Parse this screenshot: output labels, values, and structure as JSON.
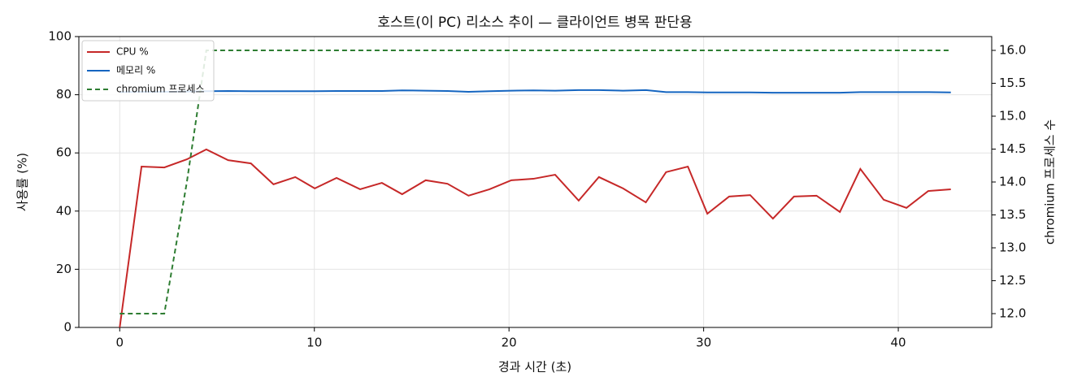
{
  "chart_data": {
    "type": "line",
    "title": "호스트(이 PC) 리소스 추이 — 클라이언트 병목 판단용",
    "xlabel": "경과 시간 (초)",
    "ylabel": "사용률 (%)",
    "y2label": "chromium 프로세스 수",
    "x": [
      0,
      1.12,
      2.29,
      3.45,
      4.45,
      5.57,
      6.74,
      7.9,
      9.02,
      10.02,
      11.14,
      12.35,
      13.47,
      14.51,
      15.72,
      16.84,
      17.92,
      19.0,
      20.12,
      21.25,
      22.37,
      23.58,
      24.62,
      25.86,
      27.03,
      28.07,
      29.19,
      30.19,
      31.31,
      32.39,
      33.56,
      34.64,
      35.8,
      37.0,
      38.05,
      39.25,
      40.42,
      41.54,
      42.7
    ],
    "series": [
      {
        "name": "CPU %",
        "color": "#c62828",
        "linestyle": "solid",
        "values": [
          0,
          55.3,
          55.0,
          57.8,
          61.2,
          57.5,
          56.4,
          49.2,
          51.7,
          47.8,
          51.4,
          47.5,
          49.7,
          45.8,
          50.6,
          49.4,
          45.3,
          47.5,
          50.6,
          51.1,
          52.5,
          43.6,
          51.7,
          47.8,
          43.0,
          53.4,
          55.3,
          39.1,
          45.0,
          45.5,
          37.4,
          45.0,
          45.3,
          39.7,
          54.5,
          43.9,
          41.1,
          46.9,
          47.5
        ]
      },
      {
        "name": "메모리 %",
        "color": "#1565c0",
        "linestyle": "solid",
        "values": [
          80.9,
          81.0,
          81.0,
          81.1,
          81.2,
          81.3,
          81.2,
          81.2,
          81.2,
          81.2,
          81.3,
          81.3,
          81.3,
          81.5,
          81.4,
          81.3,
          81.0,
          81.2,
          81.4,
          81.5,
          81.4,
          81.6,
          81.6,
          81.4,
          81.6,
          80.9,
          80.9,
          80.8,
          80.8,
          80.8,
          80.7,
          80.7,
          80.7,
          80.7,
          80.9,
          80.9,
          80.9,
          80.9,
          80.8
        ]
      },
      {
        "name": "chromium 프로세스",
        "color": "#2e7d32",
        "linestyle": "dashed",
        "axis": "y2",
        "values": [
          12,
          12,
          12,
          14,
          16,
          16,
          16,
          16,
          16,
          16,
          16,
          16,
          16,
          16,
          16,
          16,
          16,
          16,
          16,
          16,
          16,
          16,
          16,
          16,
          16,
          16,
          16,
          16,
          16,
          16,
          16,
          16,
          16,
          16,
          16,
          16,
          16,
          16,
          16
        ]
      }
    ],
    "xlim": [
      -2.1,
      44.8
    ],
    "xticks": [
      0,
      10,
      20,
      30,
      40
    ],
    "ylim": [
      0,
      100
    ],
    "yticks": [
      0,
      20,
      40,
      60,
      80,
      100
    ],
    "y2lim": [
      11.79,
      16.21
    ],
    "y2ticks": [
      {
        "value": 12,
        "label": "12.0"
      },
      12.5,
      {
        "value": 13,
        "label": "13.0"
      },
      13.5,
      {
        "value": 14,
        "label": "14.0"
      },
      14.5,
      {
        "value": 15,
        "label": "15.0"
      },
      15.5,
      {
        "value": 16,
        "label": "16.0"
      }
    ],
    "grid": true,
    "legend": "upper left"
  }
}
